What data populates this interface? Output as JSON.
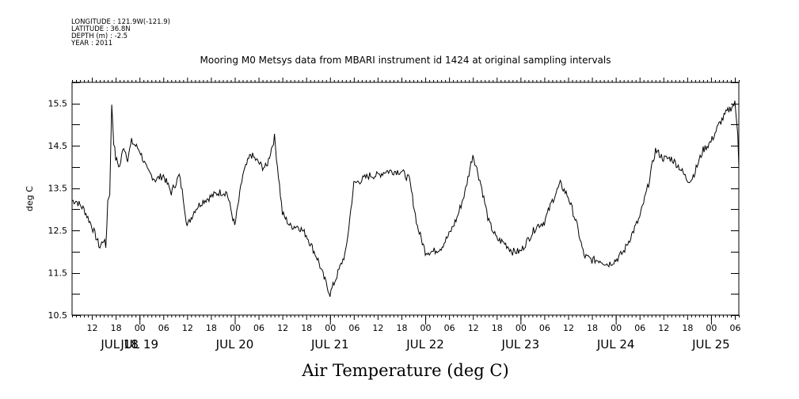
{
  "header": {
    "longitude": "LONGITUDE : 121.9W(-121.9)",
    "latitude": "LATITUDE : 36.8N",
    "depth": "DEPTH (m) : -2.5",
    "year": "YEAR : 2011"
  },
  "chart_data": {
    "type": "line",
    "title": "Mooring M0 Metsys data from MBARI instrument id 1424 at original sampling intervals",
    "ylabel": "deg C",
    "xlabel": "Air Temperature (deg C)",
    "ylim": [
      10.5,
      16.0
    ],
    "xlim_hours": [
      7,
      175
    ],
    "y_ticks": [
      "10.5",
      "11.5",
      "12.5",
      "13.5",
      "14.5",
      "15.5"
    ],
    "x_hour_ticks": [
      "12",
      "18",
      "00",
      "06",
      "12",
      "18",
      "00",
      "06",
      "12",
      "18",
      "00",
      "06",
      "12",
      "18",
      "00",
      "06",
      "12",
      "18",
      "00",
      "06",
      "12",
      "18",
      "00",
      "06",
      "12",
      "18",
      "00",
      "06"
    ],
    "x_day_labels": [
      "JUL 18",
      "JUL 19",
      "JUL 20",
      "JUL 21",
      "JUL 22",
      "JUL 23",
      "JUL 24",
      "JUL 25"
    ],
    "grid": false,
    "series": [
      {
        "x_hours_since_jul18_00": [
          7,
          8,
          10,
          12,
          14,
          15,
          15.5,
          16,
          16.5,
          17,
          17.5,
          18,
          19,
          20,
          21,
          22,
          24,
          26,
          28,
          30,
          32,
          34,
          35,
          36,
          38,
          40,
          42,
          44,
          46,
          48,
          50,
          52,
          53,
          54,
          55,
          56,
          58,
          60,
          62,
          64,
          66,
          68,
          69,
          70,
          72,
          74,
          76,
          78,
          80,
          82,
          84,
          86,
          88,
          90,
          92,
          94,
          96,
          98,
          100,
          102,
          104,
          106,
          108,
          110,
          112,
          114,
          116,
          118,
          120,
          122,
          124,
          126,
          128,
          130,
          132,
          134,
          136,
          138,
          140,
          142,
          144,
          146,
          148,
          150,
          152,
          154,
          156,
          158,
          160,
          162,
          163,
          164,
          166,
          168,
          170,
          172,
          174,
          175
        ],
        "y": [
          13.2,
          13.2,
          13.0,
          12.6,
          12.1,
          12.3,
          12.1,
          13.2,
          13.4,
          15.5,
          14.6,
          14.2,
          14.0,
          14.5,
          14.2,
          14.6,
          14.4,
          13.9,
          13.7,
          13.8,
          13.4,
          13.8,
          13.3,
          12.6,
          13.0,
          13.2,
          13.3,
          13.4,
          13.4,
          12.6,
          13.8,
          14.3,
          14.2,
          14.1,
          14.0,
          14.0,
          14.7,
          12.9,
          12.6,
          12.6,
          12.4,
          12.0,
          11.8,
          11.5,
          11.0,
          11.5,
          12.0,
          13.6,
          13.7,
          13.8,
          13.8,
          13.9,
          13.9,
          13.9,
          13.7,
          12.6,
          12.0,
          12.0,
          12.1,
          12.4,
          12.8,
          13.4,
          14.3,
          13.6,
          12.7,
          12.3,
          12.2,
          12.0,
          12.0,
          12.3,
          12.6,
          12.7,
          13.2,
          13.6,
          13.3,
          12.7,
          11.9,
          11.8,
          11.8,
          11.7,
          11.8,
          12.0,
          12.4,
          12.8,
          13.5,
          14.4,
          14.2,
          14.2,
          14.0,
          13.7,
          13.7,
          13.9,
          14.4,
          14.6,
          15.0,
          15.3,
          15.5,
          14.6,
          14.1,
          14.0
        ]
      }
    ]
  }
}
